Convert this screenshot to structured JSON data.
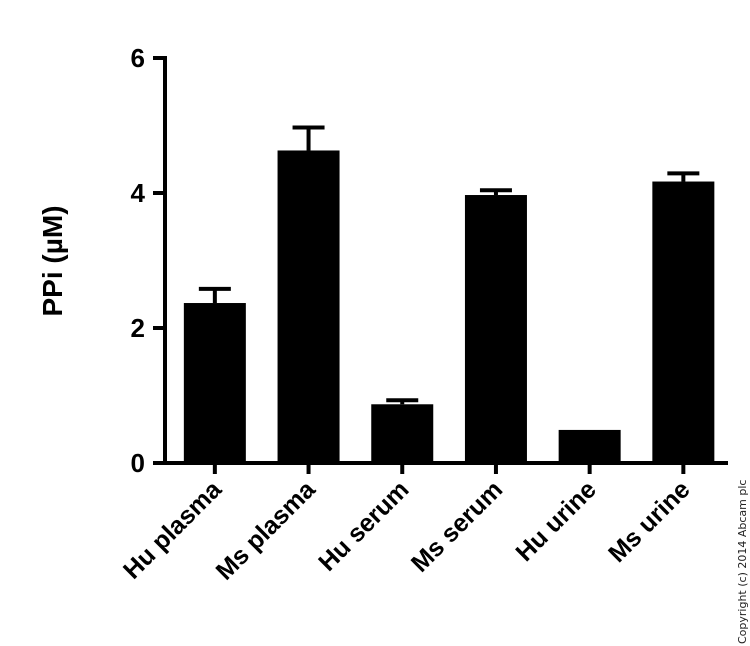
{
  "chart_data": {
    "type": "bar",
    "title": "",
    "xlabel": "",
    "ylabel": "PPi (µM)",
    "ylim": [
      0,
      6
    ],
    "yticks": [
      0,
      2,
      4,
      6
    ],
    "grid": false,
    "categories": [
      "Hu plasma",
      "Ms plasma",
      "Hu serum",
      "Ms serum",
      "Hu urine",
      "Ms urine"
    ],
    "values": [
      2.37,
      4.63,
      0.87,
      3.97,
      0.49,
      4.17
    ],
    "errors": [
      0.21,
      0.34,
      0.06,
      0.07,
      0.0,
      0.12
    ],
    "bar_color": "#000000"
  },
  "copyright": "Copyright (c) 2014 Abcam plc"
}
